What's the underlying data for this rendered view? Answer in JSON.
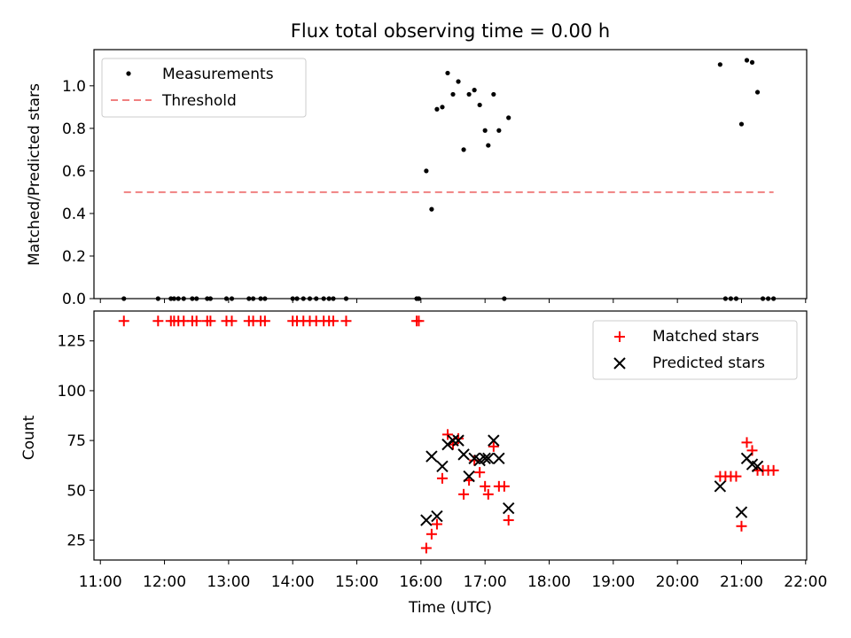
{
  "chart_data": [
    {
      "type": "scatter",
      "title": "Flux total observing time = 0.00 h",
      "xlabel": "",
      "ylabel": "Matched/Predicted stars",
      "xlim": [
        "10:54",
        "22:01"
      ],
      "ylim": [
        0,
        1.17
      ],
      "yticks": [
        "0.0",
        "0.2",
        "0.4",
        "0.6",
        "0.8",
        "1.0"
      ],
      "grid": false,
      "legend": {
        "position": "top-left",
        "entries": [
          "Measurements",
          "Threshold"
        ]
      },
      "series": [
        {
          "name": "Measurements",
          "marker": "dot",
          "color": "#000000",
          "points": [
            [
              "11:22",
              0
            ],
            [
              "11:54",
              0
            ],
            [
              "12:06",
              0
            ],
            [
              "12:09",
              0
            ],
            [
              "12:13",
              0
            ],
            [
              "12:18",
              0
            ],
            [
              "12:26",
              0
            ],
            [
              "12:30",
              0
            ],
            [
              "12:40",
              0
            ],
            [
              "12:43",
              0
            ],
            [
              "12:58",
              0
            ],
            [
              "13:03",
              0
            ],
            [
              "13:19",
              0
            ],
            [
              "13:23",
              0
            ],
            [
              "13:30",
              0
            ],
            [
              "13:34",
              0
            ],
            [
              "14:00",
              0
            ],
            [
              "14:04",
              0
            ],
            [
              "14:10",
              0
            ],
            [
              "14:16",
              0
            ],
            [
              "14:22",
              0
            ],
            [
              "14:29",
              0
            ],
            [
              "14:34",
              0
            ],
            [
              "14:38",
              0
            ],
            [
              "14:50",
              0
            ],
            [
              "15:56",
              0
            ],
            [
              "15:58",
              0
            ],
            [
              "16:05",
              0.6
            ],
            [
              "16:10",
              0.42
            ],
            [
              "16:15",
              0.89
            ],
            [
              "16:20",
              0.9
            ],
            [
              "16:25",
              1.06
            ],
            [
              "16:30",
              0.96
            ],
            [
              "16:35",
              1.02
            ],
            [
              "16:40",
              0.7
            ],
            [
              "16:45",
              0.96
            ],
            [
              "16:50",
              0.98
            ],
            [
              "16:55",
              0.91
            ],
            [
              "17:00",
              0.79
            ],
            [
              "17:03",
              0.72
            ],
            [
              "17:08",
              0.96
            ],
            [
              "17:13",
              0.79
            ],
            [
              "17:18",
              0
            ],
            [
              "17:22",
              0.85
            ],
            [
              "20:40",
              1.1
            ],
            [
              "20:45",
              0
            ],
            [
              "20:50",
              0
            ],
            [
              "20:55",
              0
            ],
            [
              "21:00",
              0.82
            ],
            [
              "21:05",
              1.12
            ],
            [
              "21:10",
              1.11
            ],
            [
              "21:15",
              0.97
            ],
            [
              "21:20",
              0
            ],
            [
              "21:25",
              0
            ],
            [
              "21:30",
              0
            ]
          ]
        },
        {
          "name": "Threshold",
          "style": "dashed",
          "color": "#f08080",
          "points": [
            [
              "11:22",
              0.5
            ],
            [
              "21:30",
              0.5
            ]
          ]
        }
      ]
    },
    {
      "type": "scatter",
      "title": "",
      "xlabel": "Time (UTC)",
      "ylabel": "Count",
      "xlim": [
        "10:54",
        "22:01"
      ],
      "ylim": [
        15,
        140
      ],
      "xticks": [
        "11:00",
        "12:00",
        "13:00",
        "14:00",
        "15:00",
        "16:00",
        "17:00",
        "18:00",
        "19:00",
        "20:00",
        "21:00",
        "22:00"
      ],
      "yticks": [
        "25",
        "50",
        "75",
        "100",
        "125"
      ],
      "grid": false,
      "legend": {
        "position": "top-right",
        "entries": [
          "Matched stars",
          "Predicted stars"
        ]
      },
      "series": [
        {
          "name": "Matched stars",
          "marker": "plus",
          "color": "#ff0000",
          "points": [
            [
              "11:22",
              135
            ],
            [
              "11:54",
              135
            ],
            [
              "12:06",
              135
            ],
            [
              "12:09",
              135
            ],
            [
              "12:13",
              135
            ],
            [
              "12:18",
              135
            ],
            [
              "12:26",
              135
            ],
            [
              "12:30",
              135
            ],
            [
              "12:40",
              135
            ],
            [
              "12:43",
              135
            ],
            [
              "12:58",
              135
            ],
            [
              "13:03",
              135
            ],
            [
              "13:19",
              135
            ],
            [
              "13:23",
              135
            ],
            [
              "13:30",
              135
            ],
            [
              "13:34",
              135
            ],
            [
              "14:00",
              135
            ],
            [
              "14:04",
              135
            ],
            [
              "14:10",
              135
            ],
            [
              "14:16",
              135
            ],
            [
              "14:22",
              135
            ],
            [
              "14:29",
              135
            ],
            [
              "14:34",
              135
            ],
            [
              "14:38",
              135
            ],
            [
              "14:50",
              135
            ],
            [
              "15:56",
              135
            ],
            [
              "15:58",
              135
            ],
            [
              "16:05",
              21
            ],
            [
              "16:10",
              28
            ],
            [
              "16:15",
              33
            ],
            [
              "16:20",
              56
            ],
            [
              "16:25",
              78
            ],
            [
              "16:30",
              73
            ],
            [
              "16:35",
              76
            ],
            [
              "16:40",
              48
            ],
            [
              "16:45",
              55
            ],
            [
              "16:50",
              65
            ],
            [
              "16:55",
              59
            ],
            [
              "17:00",
              52
            ],
            [
              "17:03",
              48
            ],
            [
              "17:08",
              72
            ],
            [
              "17:13",
              52
            ],
            [
              "17:18",
              52
            ],
            [
              "17:22",
              35
            ],
            [
              "20:40",
              57
            ],
            [
              "20:45",
              57
            ],
            [
              "20:50",
              57
            ],
            [
              "20:55",
              57
            ],
            [
              "21:00",
              32
            ],
            [
              "21:05",
              74
            ],
            [
              "21:10",
              70
            ],
            [
              "21:15",
              60
            ],
            [
              "21:20",
              60
            ],
            [
              "21:25",
              60
            ],
            [
              "21:30",
              60
            ]
          ]
        },
        {
          "name": "Predicted stars",
          "marker": "x",
          "color": "#000000",
          "points": [
            [
              "16:05",
              35
            ],
            [
              "16:10",
              67
            ],
            [
              "16:15",
              37
            ],
            [
              "16:20",
              62
            ],
            [
              "16:25",
              73
            ],
            [
              "16:30",
              75
            ],
            [
              "16:35",
              75
            ],
            [
              "16:40",
              68
            ],
            [
              "16:45",
              57
            ],
            [
              "16:50",
              66
            ],
            [
              "16:55",
              65
            ],
            [
              "17:00",
              66
            ],
            [
              "17:03",
              66
            ],
            [
              "17:08",
              75
            ],
            [
              "17:13",
              66
            ],
            [
              "17:22",
              41
            ],
            [
              "20:40",
              52
            ],
            [
              "21:00",
              39
            ],
            [
              "21:05",
              66
            ],
            [
              "21:10",
              63
            ],
            [
              "21:15",
              62
            ]
          ]
        }
      ]
    }
  ]
}
